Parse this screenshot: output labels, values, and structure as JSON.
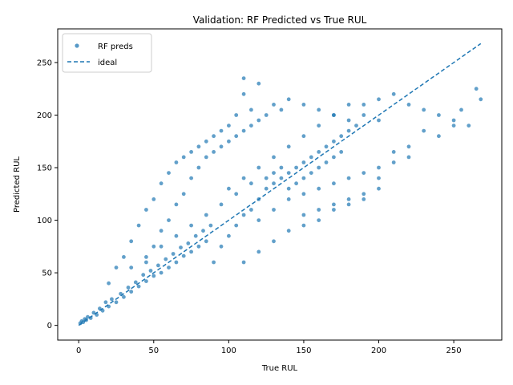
{
  "chart_data": {
    "type": "scatter",
    "title": "Validation: RF Predicted vs True RUL",
    "xlabel": "True RUL",
    "ylabel": "Predicted RUL",
    "xlim": [
      -14,
      282
    ],
    "ylim": [
      -14,
      282
    ],
    "xticks": [
      0,
      50,
      100,
      150,
      200,
      250
    ],
    "yticks": [
      0,
      50,
      100,
      150,
      200,
      250
    ],
    "grid": false,
    "legend_position": "top-left",
    "series": [
      {
        "name": "RF preds",
        "kind": "scatter",
        "color": "#1f77b4",
        "points": [
          [
            1,
            2
          ],
          [
            2,
            4
          ],
          [
            3,
            3
          ],
          [
            4,
            6
          ],
          [
            5,
            5
          ],
          [
            6,
            8
          ],
          [
            8,
            7
          ],
          [
            10,
            12
          ],
          [
            12,
            10
          ],
          [
            14,
            16
          ],
          [
            16,
            14
          ],
          [
            18,
            22
          ],
          [
            20,
            18
          ],
          [
            22,
            25
          ],
          [
            25,
            22
          ],
          [
            28,
            30
          ],
          [
            30,
            27
          ],
          [
            33,
            36
          ],
          [
            35,
            32
          ],
          [
            38,
            41
          ],
          [
            40,
            37
          ],
          [
            43,
            48
          ],
          [
            45,
            42
          ],
          [
            48,
            52
          ],
          [
            50,
            47
          ],
          [
            53,
            57
          ],
          [
            55,
            50
          ],
          [
            58,
            63
          ],
          [
            60,
            55
          ],
          [
            63,
            68
          ],
          [
            65,
            60
          ],
          [
            68,
            74
          ],
          [
            70,
            66
          ],
          [
            73,
            78
          ],
          [
            75,
            70
          ],
          [
            78,
            85
          ],
          [
            80,
            75
          ],
          [
            83,
            90
          ],
          [
            85,
            80
          ],
          [
            88,
            95
          ],
          [
            20,
            40
          ],
          [
            25,
            55
          ],
          [
            30,
            65
          ],
          [
            35,
            80
          ],
          [
            40,
            95
          ],
          [
            45,
            110
          ],
          [
            50,
            120
          ],
          [
            55,
            135
          ],
          [
            60,
            145
          ],
          [
            65,
            155
          ],
          [
            70,
            160
          ],
          [
            75,
            165
          ],
          [
            80,
            170
          ],
          [
            85,
            175
          ],
          [
            90,
            180
          ],
          [
            95,
            185
          ],
          [
            100,
            190
          ],
          [
            105,
            200
          ],
          [
            110,
            220
          ],
          [
            115,
            205
          ],
          [
            45,
            60
          ],
          [
            50,
            75
          ],
          [
            55,
            90
          ],
          [
            60,
            100
          ],
          [
            65,
            115
          ],
          [
            70,
            125
          ],
          [
            75,
            140
          ],
          [
            80,
            150
          ],
          [
            85,
            160
          ],
          [
            90,
            165
          ],
          [
            95,
            170
          ],
          [
            100,
            175
          ],
          [
            105,
            180
          ],
          [
            110,
            185
          ],
          [
            115,
            190
          ],
          [
            120,
            195
          ],
          [
            125,
            200
          ],
          [
            130,
            210
          ],
          [
            135,
            205
          ],
          [
            140,
            215
          ],
          [
            90,
            60
          ],
          [
            95,
            75
          ],
          [
            100,
            85
          ],
          [
            105,
            95
          ],
          [
            110,
            105
          ],
          [
            115,
            110
          ],
          [
            120,
            120
          ],
          [
            125,
            130
          ],
          [
            130,
            135
          ],
          [
            135,
            140
          ],
          [
            140,
            145
          ],
          [
            145,
            150
          ],
          [
            150,
            155
          ],
          [
            155,
            160
          ],
          [
            160,
            165
          ],
          [
            165,
            170
          ],
          [
            170,
            175
          ],
          [
            175,
            180
          ],
          [
            180,
            185
          ],
          [
            185,
            190
          ],
          [
            100,
            130
          ],
          [
            110,
            140
          ],
          [
            120,
            150
          ],
          [
            130,
            160
          ],
          [
            140,
            170
          ],
          [
            150,
            180
          ],
          [
            160,
            190
          ],
          [
            170,
            200
          ],
          [
            180,
            195
          ],
          [
            190,
            210
          ],
          [
            200,
            215
          ],
          [
            210,
            220
          ],
          [
            220,
            210
          ],
          [
            230,
            205
          ],
          [
            240,
            200
          ],
          [
            250,
            195
          ],
          [
            260,
            190
          ],
          [
            265,
            225
          ],
          [
            268,
            215
          ],
          [
            255,
            205
          ],
          [
            120,
            100
          ],
          [
            130,
            110
          ],
          [
            140,
            120
          ],
          [
            150,
            125
          ],
          [
            160,
            130
          ],
          [
            170,
            135
          ],
          [
            180,
            140
          ],
          [
            190,
            145
          ],
          [
            200,
            150
          ],
          [
            210,
            155
          ],
          [
            220,
            160
          ],
          [
            230,
            185
          ],
          [
            240,
            180
          ],
          [
            250,
            190
          ],
          [
            200,
            130
          ],
          [
            190,
            125
          ],
          [
            180,
            120
          ],
          [
            170,
            115
          ],
          [
            160,
            110
          ],
          [
            150,
            105
          ],
          [
            110,
            60
          ],
          [
            120,
            70
          ],
          [
            130,
            80
          ],
          [
            140,
            90
          ],
          [
            150,
            95
          ],
          [
            160,
            100
          ],
          [
            170,
            110
          ],
          [
            180,
            115
          ],
          [
            190,
            120
          ],
          [
            200,
            140
          ],
          [
            210,
            165
          ],
          [
            220,
            170
          ],
          [
            150,
            210
          ],
          [
            160,
            205
          ],
          [
            170,
            200
          ],
          [
            180,
            210
          ],
          [
            190,
            200
          ],
          [
            200,
            195
          ],
          [
            110,
            235
          ],
          [
            120,
            230
          ],
          [
            140,
            130
          ],
          [
            145,
            135
          ],
          [
            150,
            140
          ],
          [
            155,
            145
          ],
          [
            160,
            150
          ],
          [
            165,
            155
          ],
          [
            170,
            160
          ],
          [
            175,
            165
          ],
          [
            135,
            150
          ],
          [
            130,
            145
          ],
          [
            125,
            140
          ],
          [
            115,
            135
          ],
          [
            105,
            125
          ],
          [
            95,
            115
          ],
          [
            85,
            105
          ],
          [
            75,
            95
          ],
          [
            65,
            85
          ],
          [
            55,
            75
          ],
          [
            45,
            65
          ],
          [
            35,
            55
          ]
        ]
      },
      {
        "name": "ideal",
        "kind": "line",
        "color": "#1f77b4",
        "dash": "dashed",
        "x": [
          0,
          268
        ],
        "y": [
          0,
          268
        ]
      }
    ]
  }
}
